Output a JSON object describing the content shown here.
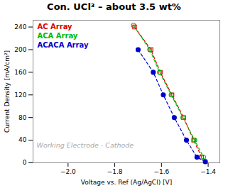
{
  "chart_data": {
    "type": "line",
    "title": "Con. UCl³ – about 3.5 wt%",
    "xlabel": "Voltage vs. Ref (Ag/AgCl) [V]",
    "ylabel": "Current Density [mA/cm²]",
    "xlim": [
      -2.15,
      -1.35
    ],
    "ylim": [
      0,
      252
    ],
    "xticks": [
      {
        "value": -2.0,
        "label": "−2.0"
      },
      {
        "value": -1.8,
        "label": "−1.8"
      },
      {
        "value": -1.6,
        "label": "−1.6"
      },
      {
        "value": -1.4,
        "label": "−1.4"
      }
    ],
    "yticks": [
      0,
      40,
      80,
      120,
      160,
      200,
      240
    ],
    "grid": false,
    "legend": "upper left",
    "annotations": [
      {
        "text": "Working Electrode - Cathode"
      }
    ],
    "series": [
      {
        "name": "AC Array",
        "color": "#dd0000",
        "marker": "square-open",
        "line_style": "dashed",
        "x": [
          -1.715,
          -1.645,
          -1.605,
          -1.555,
          -1.505,
          -1.462,
          -1.428
        ],
        "values": [
          240,
          200,
          160,
          120,
          80,
          40,
          10
        ]
      },
      {
        "name": "ACA Array",
        "color": "#00bb00",
        "marker": "circle-open",
        "line_style": "dashed",
        "x": [
          -1.72,
          -1.65,
          -1.608,
          -1.558,
          -1.508,
          -1.458,
          -1.42
        ],
        "values": [
          243,
          200,
          160,
          120,
          80,
          40,
          10
        ]
      },
      {
        "name": "ACACA Array",
        "color": "#0000cc",
        "marker": "circle",
        "line_style": "dashed",
        "x": [
          -1.7,
          -1.635,
          -1.592,
          -1.545,
          -1.493,
          -1.448,
          -1.412
        ],
        "values": [
          200,
          160,
          120,
          80,
          40,
          10,
          2
        ]
      }
    ]
  }
}
